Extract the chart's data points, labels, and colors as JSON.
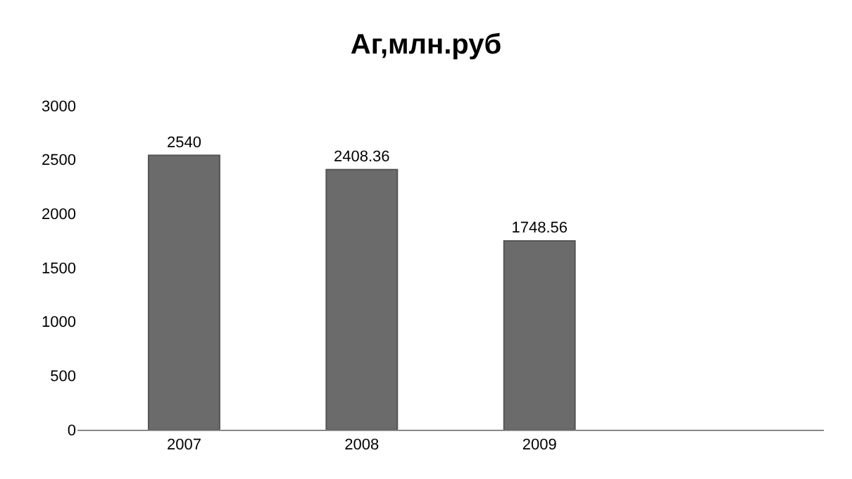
{
  "chart_data": {
    "type": "bar",
    "title": "Аг,млн.руб",
    "categories": [
      "2007",
      "2008",
      "2009"
    ],
    "values": [
      2540,
      2408.36,
      1748.56
    ],
    "color": "#6b6b6b",
    "ylim": [
      0,
      3000
    ],
    "yticks": [
      0,
      500,
      1000,
      1500,
      2000,
      2500,
      3000
    ],
    "data_labels": true
  }
}
